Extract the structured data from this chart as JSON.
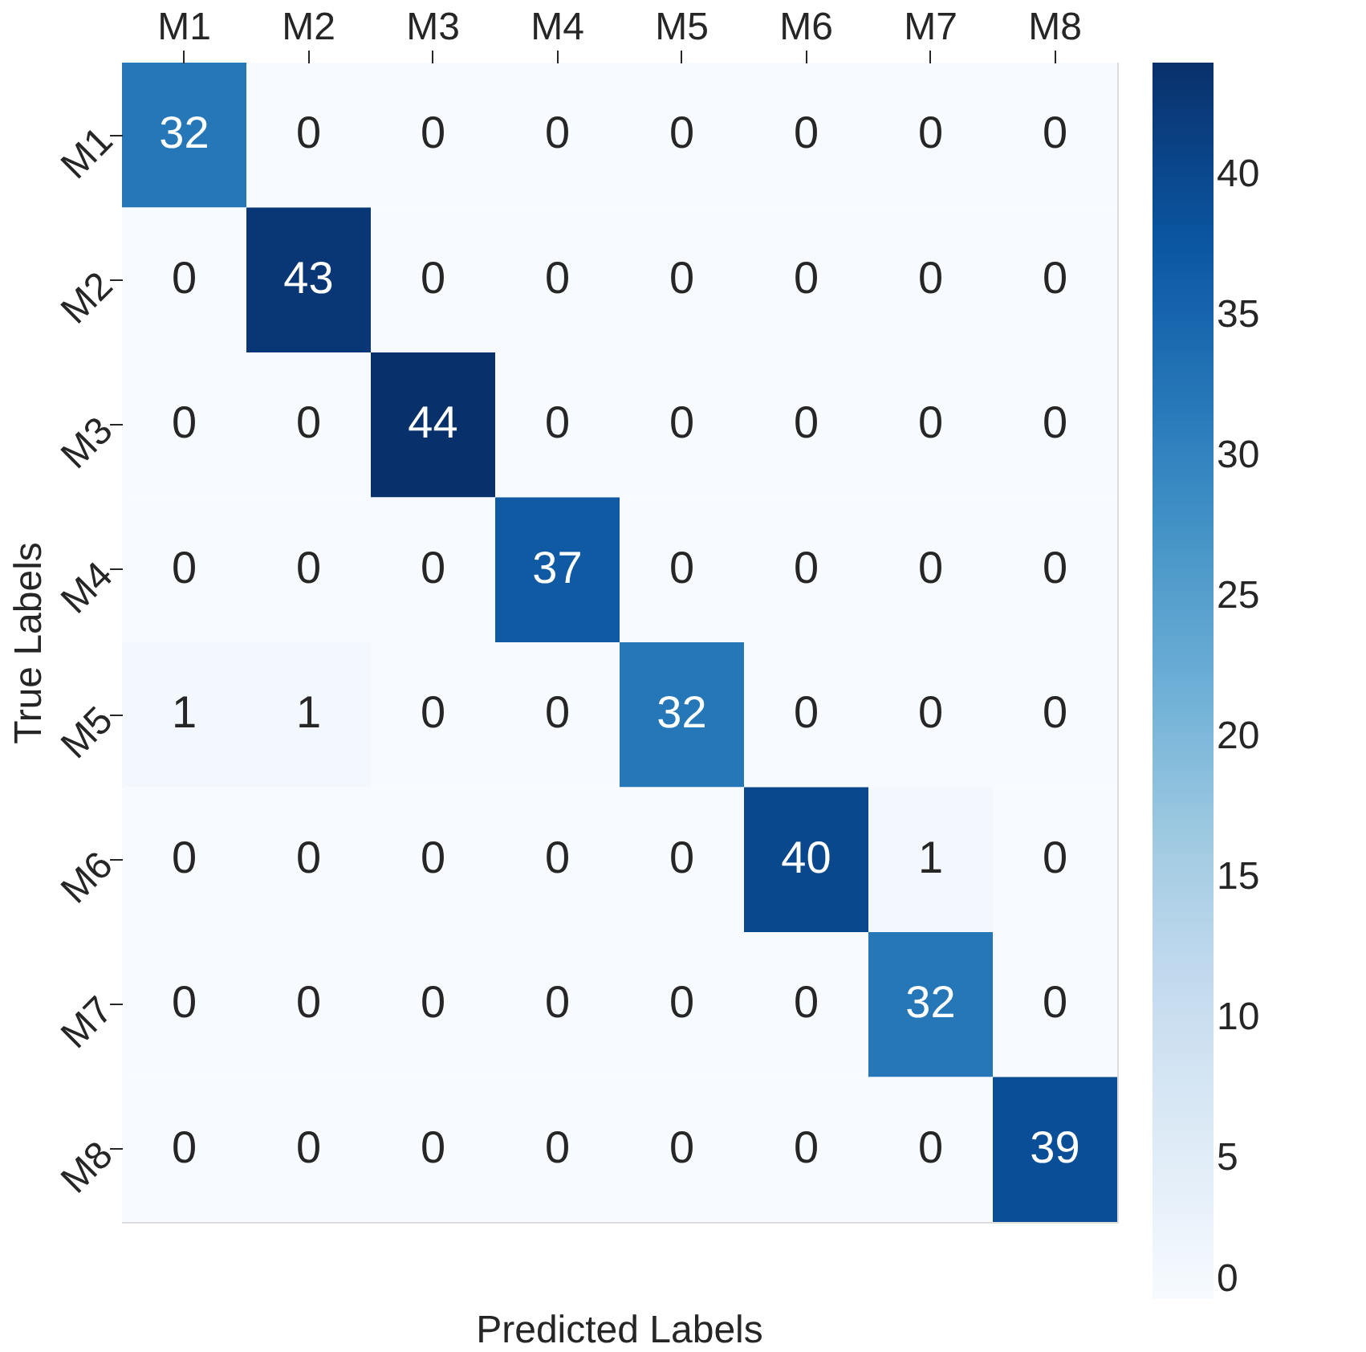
{
  "chart_data": {
    "type": "heatmap",
    "xlabel": "Predicted Labels",
    "ylabel": "True Labels",
    "categories": [
      "M1",
      "M2",
      "M3",
      "M4",
      "M5",
      "M6",
      "M7",
      "M8"
    ],
    "y_categories": [
      "M1",
      "M2",
      "M3",
      "M4",
      "M5",
      "M6",
      "M7",
      "M8"
    ],
    "cells": [
      [
        32,
        0,
        0,
        0,
        0,
        0,
        0,
        0
      ],
      [
        0,
        43,
        0,
        0,
        0,
        0,
        0,
        0
      ],
      [
        0,
        0,
        44,
        0,
        0,
        0,
        0,
        0
      ],
      [
        0,
        0,
        0,
        37,
        0,
        0,
        0,
        0
      ],
      [
        1,
        1,
        0,
        0,
        32,
        0,
        0,
        0
      ],
      [
        0,
        0,
        0,
        0,
        0,
        40,
        1,
        0
      ],
      [
        0,
        0,
        0,
        0,
        0,
        0,
        32,
        0
      ],
      [
        0,
        0,
        0,
        0,
        0,
        0,
        0,
        39
      ]
    ],
    "clim": [
      0,
      44
    ],
    "cticks": [
      0,
      5,
      10,
      15,
      20,
      25,
      30,
      35,
      40
    ],
    "data_labels": true
  }
}
